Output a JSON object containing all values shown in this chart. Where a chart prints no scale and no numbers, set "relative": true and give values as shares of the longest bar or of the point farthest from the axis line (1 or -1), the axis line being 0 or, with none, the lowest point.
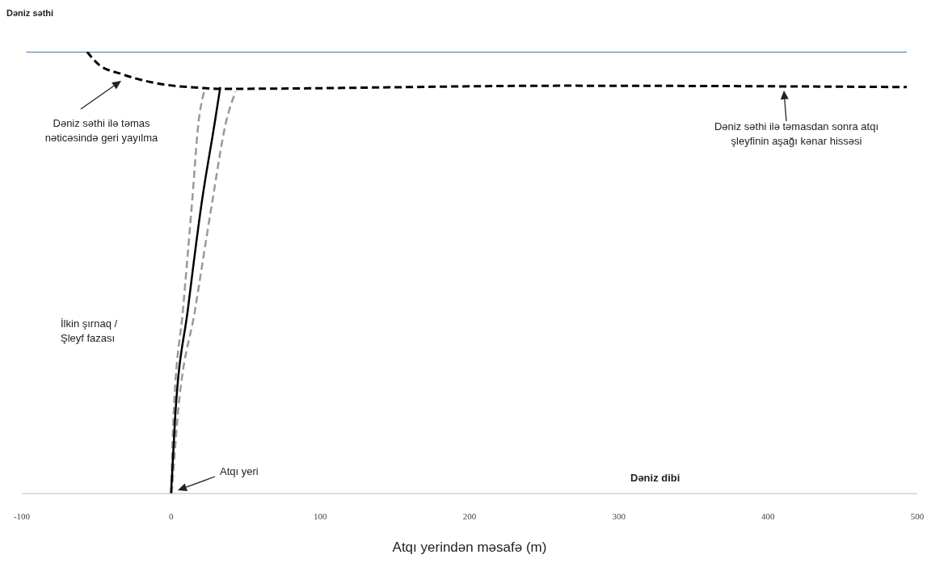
{
  "chart_data": {
    "type": "line",
    "relative": true,
    "xlabel": "Atqı yerindən məsafə (m)",
    "xlim": [
      -100,
      500
    ],
    "xticks": [
      -100,
      0,
      100,
      200,
      300,
      400,
      500
    ],
    "marker": "none",
    "series": [
      {
        "name": "Dəniz səthi",
        "color": "#3a7cc0",
        "line_style": "solid",
        "x": [
          -97,
          493
        ],
        "values": [
          1,
          1
        ]
      },
      {
        "color": "#999999",
        "line_style": "dashed",
        "x": [
          0,
          1.6,
          8.1,
          14.1,
          18.4,
          22.2
        ],
        "values": [
          0,
          0.17,
          0.42,
          0.66,
          0.84,
          0.91
        ]
      },
      {
        "color": "#999999",
        "line_style": "dashed",
        "x": [
          0.5,
          4.3,
          16.3,
          27.6,
          36.8,
          43.3
        ],
        "values": [
          0,
          0.17,
          0.42,
          0.66,
          0.84,
          0.91
        ]
      },
      {
        "color": "#000000",
        "line_style": "solid",
        "x": [
          0,
          2.7,
          11.4,
          20.6,
          29.3,
          33
        ],
        "values": [
          0,
          0.17,
          0.42,
          0.66,
          0.84,
          0.92
        ]
      },
      {
        "color": "#000000",
        "line_style": "dashed",
        "x": [
          -56.3,
          -48.2,
          -33.6,
          -11.9,
          20.6,
          33,
          264,
          493
        ],
        "values": [
          1,
          0.97,
          0.95,
          0.93,
          0.918,
          0.916,
          0.923,
          0.92
        ]
      }
    ],
    "annotations": [
      "Dəniz səthi ilə təmas nəticəsində geri yayılma",
      "Dəniz səthi ilə təmasdan sonra atqı şleyfinin aşağı kənar hissəsi",
      "İlkin şırnaq / Şleyf fazası",
      "Atqı yeri",
      "Dəniz dibi"
    ]
  }
}
